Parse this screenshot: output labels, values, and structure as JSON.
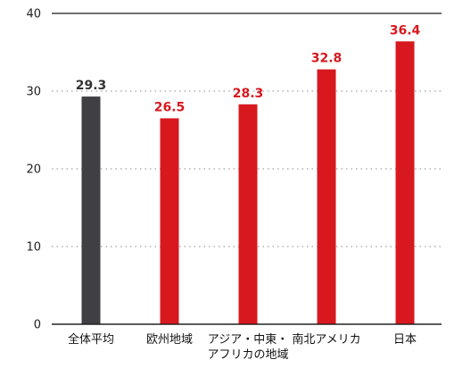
{
  "chart_data": {
    "type": "bar",
    "title": "",
    "xlabel": "",
    "ylabel": "",
    "ylim": [
      0,
      40
    ],
    "yticks": [
      0,
      10,
      20,
      30,
      40
    ],
    "grid": true,
    "categories": [
      [
        "全体平均"
      ],
      [
        "欧州地域"
      ],
      [
        "アジア・中東・",
        "アフリカの地域"
      ],
      [
        "南北アメリカ"
      ],
      [
        "日本"
      ]
    ],
    "values": [
      29.3,
      26.5,
      28.3,
      32.8,
      36.4
    ],
    "value_labels": [
      "29.3",
      "26.5",
      "28.3",
      "32.8",
      "36.4"
    ],
    "bar_colors": [
      "#3f3f44",
      "#d7191f",
      "#d7191f",
      "#d7191f",
      "#d7191f"
    ],
    "label_colors": [
      "#333333",
      "#d7191f",
      "#d7191f",
      "#d7191f",
      "#d7191f"
    ]
  }
}
